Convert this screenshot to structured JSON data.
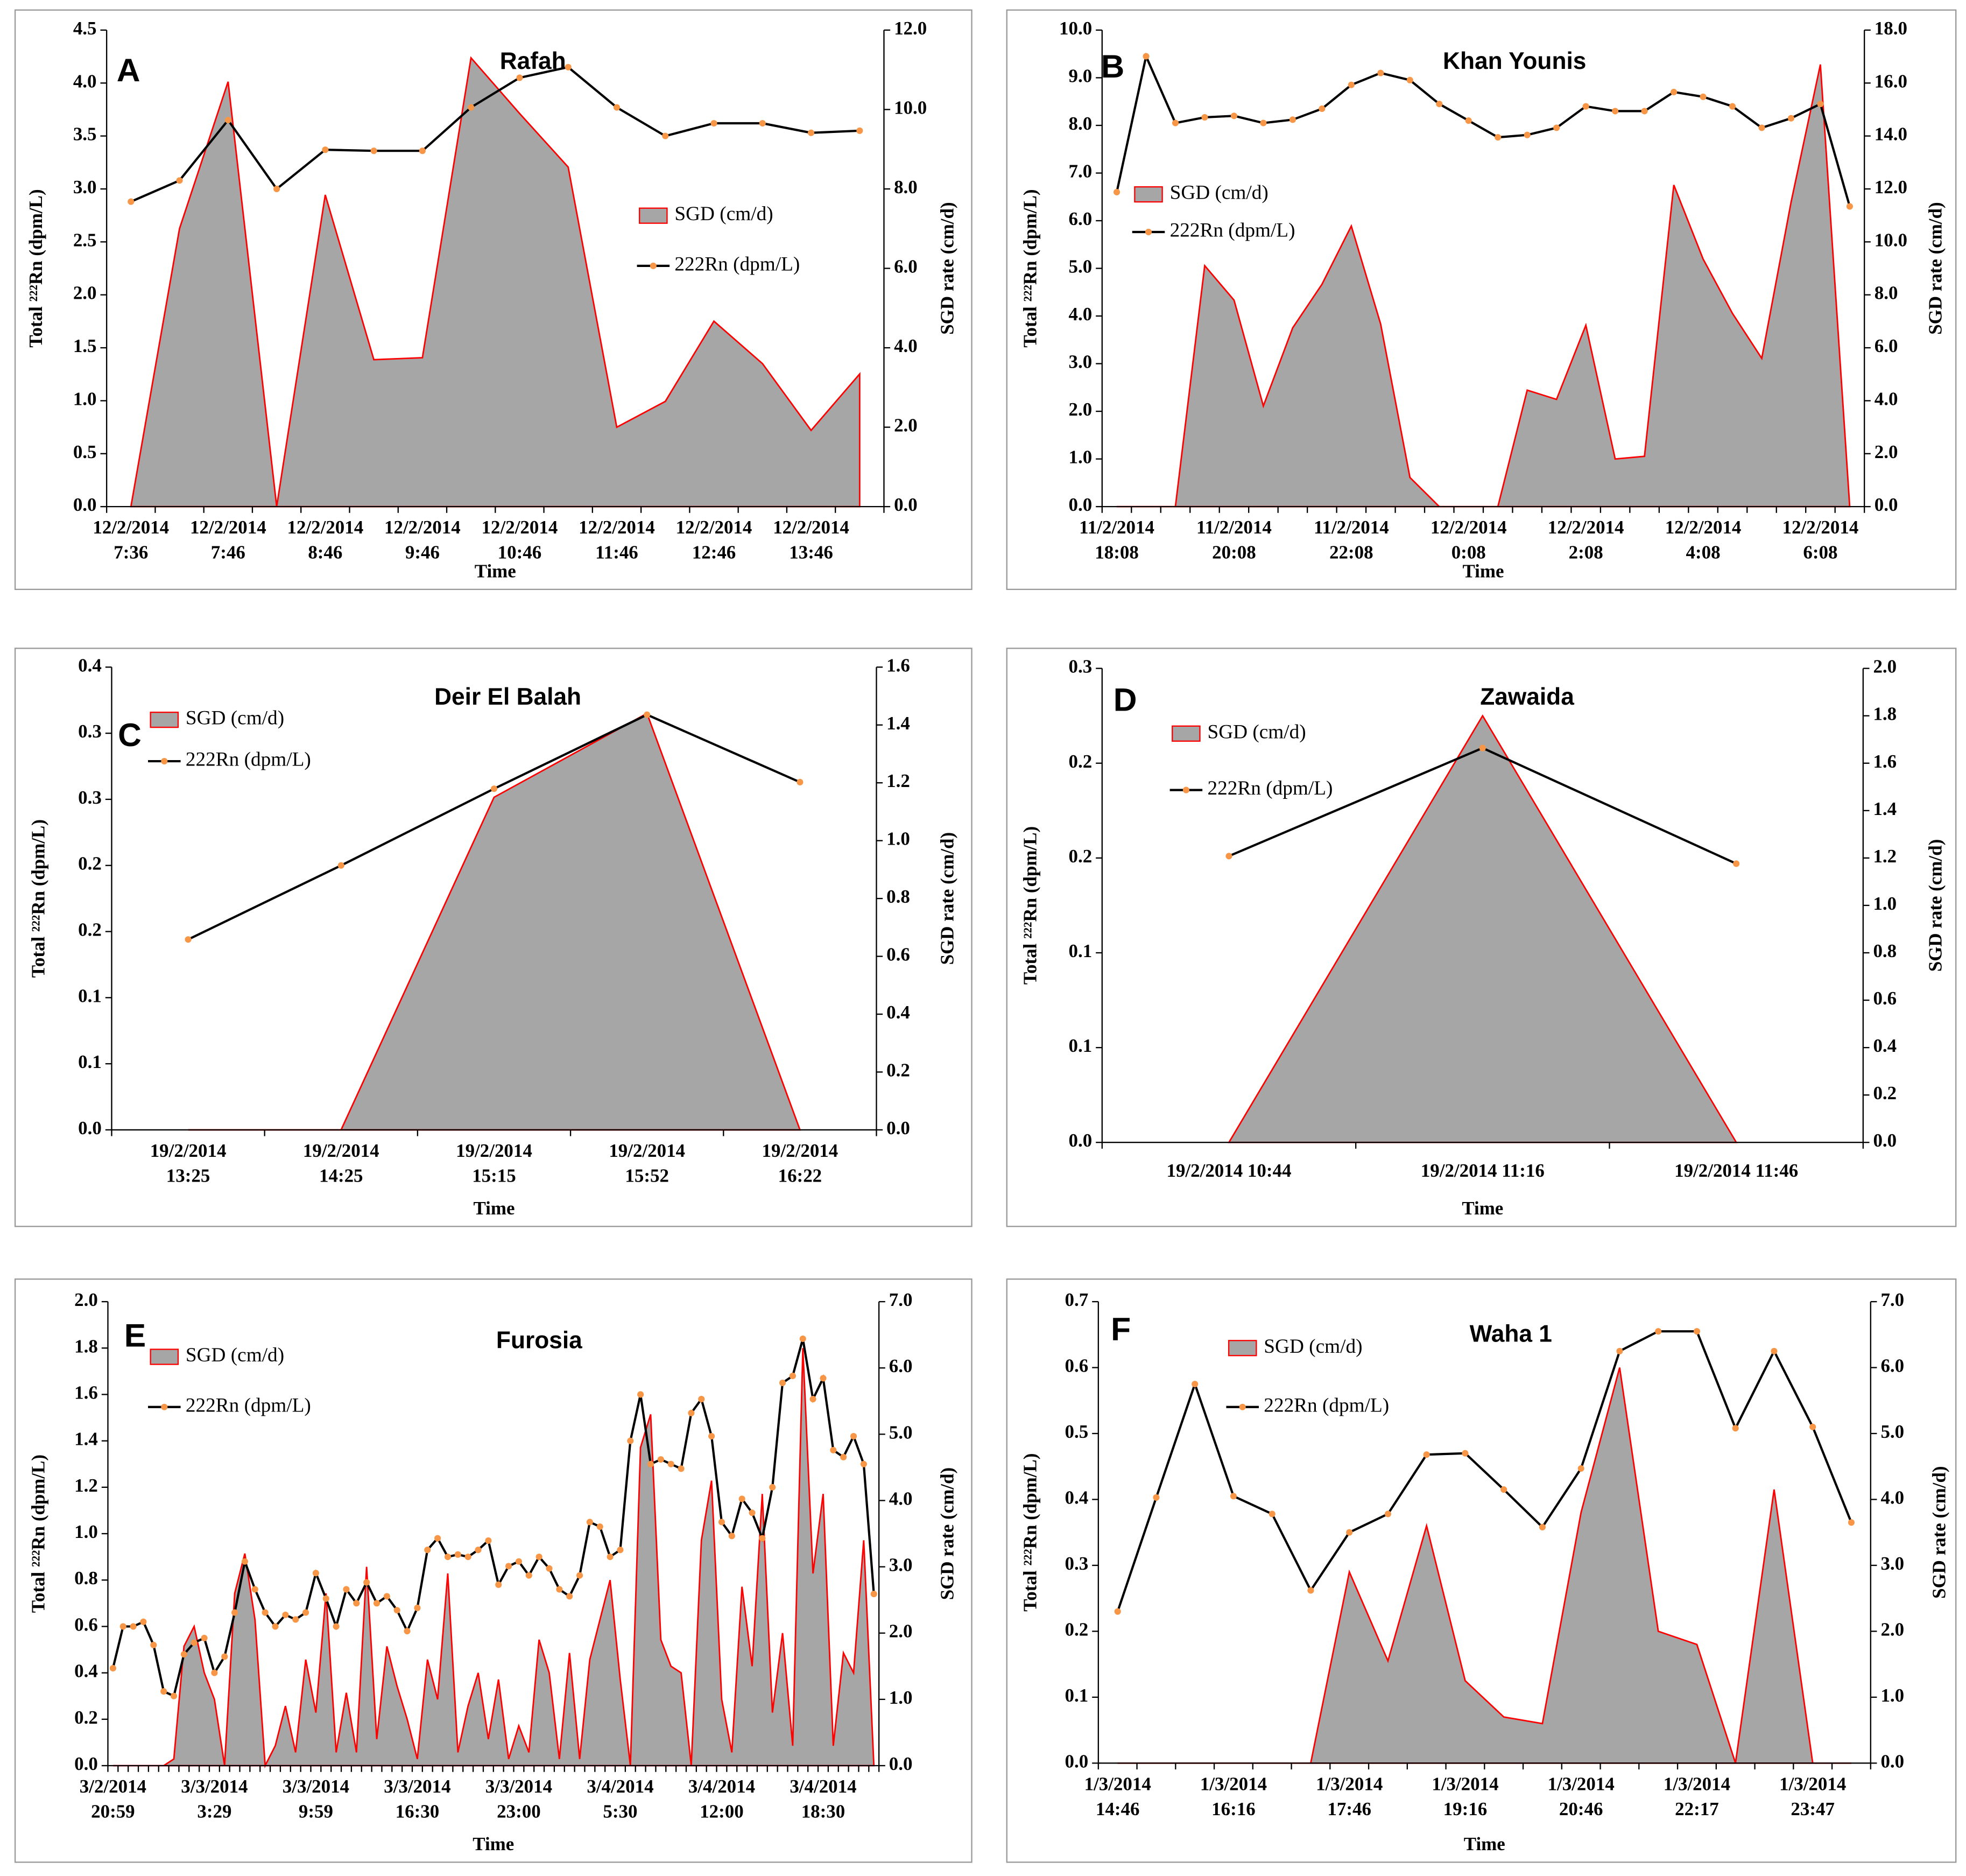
{
  "chart_data": [
    {
      "type": "combo",
      "letter": "A",
      "title": "Rafah",
      "ylabel": "Total ²²²Rn (dpm/L)",
      "y2label": "SGD rate (cm/d)",
      "xlabel": "Time",
      "categories": [
        "12/2/2014 7:36",
        null,
        "12/2/2014 7:46",
        null,
        "12/2/2014 8:46",
        null,
        "12/2/2014 9:46",
        null,
        "12/2/2014 10:46",
        null,
        "12/2/2014 11:46",
        null,
        "12/2/2014 12:46",
        null,
        "12/2/2014 13:46",
        null
      ],
      "series": [
        {
          "name": "SGD (cm/d)",
          "color": "#a6a6a6",
          "edge_color": "#ff0000",
          "axis": "y2",
          "values": [
            0,
            7.0,
            10.7,
            0,
            7.85,
            3.7,
            3.75,
            11.3,
            9.9,
            8.55,
            2.0,
            2.65,
            4.67,
            3.6,
            1.92,
            3.34
          ]
        },
        {
          "name": "222Rn (dpm/L)",
          "color": "#000000",
          "marker_color": "#f79646",
          "values": [
            2.88,
            3.08,
            3.65,
            3.0,
            3.37,
            3.36,
            3.36,
            3.77,
            4.05,
            4.15,
            3.77,
            3.5,
            3.62,
            3.62,
            3.53,
            3.55
          ]
        }
      ],
      "ylim": [
        0,
        4.5
      ],
      "yticks": [
        {
          "value": 0,
          "label": "0.0"
        },
        0.5,
        {
          "value": 1,
          "label": "1.0"
        },
        1.5,
        {
          "value": 2,
          "label": "2.0"
        },
        2.5,
        {
          "value": 3,
          "label": "3.0"
        },
        3.5,
        {
          "value": 4,
          "label": "4.0"
        },
        4.5
      ],
      "y2lim": [
        0,
        12
      ],
      "y2ticks": [
        {
          "value": 0,
          "label": "0.0"
        },
        {
          "value": 2,
          "label": "2.0"
        },
        {
          "value": 4,
          "label": "4.0"
        },
        {
          "value": 6,
          "label": "6.0"
        },
        {
          "value": 8,
          "label": "8.0"
        },
        {
          "value": 10,
          "label": "10.0"
        },
        {
          "value": 12,
          "label": "12.0"
        }
      ]
    },
    {
      "type": "combo",
      "letter": "B",
      "title": "Khan Younis",
      "ylabel": "Total ²²²Rn (dpm/L)",
      "y2label": "SGD rate (cm/d)",
      "xlabel": "Time",
      "categories": [
        "11/2/2014 18:08",
        null,
        null,
        null,
        "11/2/2014 20:08",
        null,
        null,
        null,
        "11/2/2014 22:08",
        null,
        null,
        null,
        "12/2/2014 0:08",
        null,
        null,
        null,
        "12/2/2014 2:08",
        null,
        null,
        null,
        "12/2/2014 4:08",
        null,
        null,
        null,
        "12/2/2014 6:08",
        null
      ],
      "series": [
        {
          "name": "SGD (cm/d)",
          "color": "#a6a6a6",
          "edge_color": "#ff0000",
          "axis": "y2",
          "values": [
            0,
            0,
            0,
            9.1,
            7.8,
            3.8,
            6.75,
            8.4,
            10.6,
            6.9,
            1.1,
            0,
            0,
            0,
            4.4,
            4.05,
            6.85,
            1.8,
            1.9,
            12.15,
            9.35,
            7.3,
            5.6,
            11.5,
            16.7,
            0
          ]
        },
        {
          "name": "222Rn (dpm/L)",
          "color": "#000000",
          "marker_color": "#f79646",
          "values": [
            6.6,
            9.45,
            8.05,
            8.17,
            8.2,
            8.05,
            8.12,
            8.35,
            8.85,
            9.1,
            8.95,
            8.45,
            8.1,
            7.75,
            7.8,
            7.95,
            8.4,
            8.3,
            8.3,
            8.7,
            8.6,
            8.4,
            7.95,
            8.15,
            8.45,
            6.3
          ]
        }
      ],
      "ylim": [
        0,
        10
      ],
      "yticks": [
        {
          "value": 0,
          "label": "0.0"
        },
        {
          "value": 1,
          "label": "1.0"
        },
        {
          "value": 2,
          "label": "2.0"
        },
        {
          "value": 3,
          "label": "3.0"
        },
        {
          "value": 4,
          "label": "4.0"
        },
        {
          "value": 5,
          "label": "5.0"
        },
        {
          "value": 6,
          "label": "6.0"
        },
        {
          "value": 7,
          "label": "7.0"
        },
        {
          "value": 8,
          "label": "8.0"
        },
        {
          "value": 9,
          "label": "9.0"
        },
        {
          "value": 10,
          "label": "10.0"
        }
      ],
      "y2lim": [
        0,
        18
      ],
      "y2ticks": [
        {
          "value": 0,
          "label": "0.0"
        },
        {
          "value": 2,
          "label": "2.0"
        },
        {
          "value": 4,
          "label": "4.0"
        },
        {
          "value": 6,
          "label": "6.0"
        },
        {
          "value": 8,
          "label": "8.0"
        },
        {
          "value": 10,
          "label": "10.0"
        },
        {
          "value": 12,
          "label": "12.0"
        },
        {
          "value": 14,
          "label": "14.0"
        },
        {
          "value": 16,
          "label": "16.0"
        },
        {
          "value": 18,
          "label": "18.0"
        }
      ]
    },
    {
      "type": "combo",
      "letter": "C",
      "title": "Deir El Balah",
      "ylabel": "Total ²²²Rn (dpm/L)",
      "y2label": "SGD rate (cm/d)",
      "xlabel": "Time",
      "categories": [
        "19/2/2014 13:25",
        "19/2/2014 14:25",
        "19/2/2014 15:15",
        "19/2/2014 15:52",
        "19/2/2014 16:22"
      ],
      "series": [
        {
          "name": "SGD (cm/d)",
          "color": "#a6a6a6",
          "edge_color": "#ff0000",
          "axis": "y2",
          "values": [
            0,
            0,
            1.15,
            1.44,
            0
          ]
        },
        {
          "name": "222Rn (dpm/L)",
          "color": "#000000",
          "marker_color": "#f79646",
          "values": [
            0.144,
            0.2,
            0.258,
            0.314,
            0.263
          ]
        }
      ],
      "ylim": [
        0,
        0.35
      ],
      "yticks": [
        {
          "value": 0,
          "label": "0.0"
        },
        {
          "value": 0.05,
          "label": "0.1"
        },
        0.1,
        {
          "value": 0.15,
          "label": "0.2"
        },
        0.2,
        {
          "value": 0.25,
          "label": "0.3"
        },
        0.3,
        {
          "value": 0.35,
          "label": "0.4"
        }
      ],
      "y2lim": [
        0,
        1.6
      ],
      "y2ticks": [
        {
          "value": 0,
          "label": "0.0"
        },
        0.2,
        0.4,
        0.6,
        0.8,
        {
          "value": 1,
          "label": "1.0"
        },
        1.2,
        1.4,
        1.6
      ]
    },
    {
      "type": "combo",
      "letter": "D",
      "title": "Zawaida",
      "ylabel": "Total ²²²Rn (dpm/L)",
      "y2label": "SGD rate (cm/d)",
      "xlabel": "Time",
      "categories": [
        "19/2/2014 10:44",
        "19/2/2014 11:16",
        "19/2/2014 11:46"
      ],
      "series": [
        {
          "name": "SGD (cm/d)",
          "color": "#a6a6a6",
          "edge_color": "#ff0000",
          "axis": "y2",
          "values": [
            0,
            1.8,
            0
          ]
        },
        {
          "name": "222Rn (dpm/L)",
          "color": "#000000",
          "marker_color": "#f79646",
          "values": [
            0.151,
            0.208,
            0.147
          ]
        }
      ],
      "ylim": [
        0,
        0.25
      ],
      "yticks": [
        {
          "value": 0,
          "label": "0.0"
        },
        {
          "value": 0.05,
          "label": "0.1"
        },
        0.1,
        {
          "value": 0.15,
          "label": "0.2"
        },
        0.2,
        {
          "value": 0.25,
          "label": "0.3"
        }
      ],
      "y2lim": [
        0,
        2
      ],
      "y2ticks": [
        {
          "value": 0,
          "label": "0.0"
        },
        0.2,
        0.4,
        0.6,
        0.8,
        {
          "value": 1,
          "label": "1.0"
        },
        1.2,
        1.4,
        1.6,
        1.8,
        {
          "value": 2,
          "label": "2.0"
        }
      ]
    },
    {
      "type": "combo",
      "letter": "E",
      "title": "Furosia",
      "ylabel": "Total ²²²Rn (dpm/L)",
      "y2label": "SGD rate (cm/d)",
      "xlabel": "Time",
      "categories": [
        "3/2/2014 20:59",
        null,
        null,
        null,
        null,
        null,
        null,
        null,
        null,
        null,
        "3/3/2014 3:29",
        null,
        null,
        null,
        null,
        null,
        null,
        null,
        null,
        null,
        "3/3/2014 9:59",
        null,
        null,
        null,
        null,
        null,
        null,
        null,
        null,
        null,
        "3/3/2014 16:30",
        null,
        null,
        null,
        null,
        null,
        null,
        null,
        null,
        null,
        "3/3/2014 23:00",
        null,
        null,
        null,
        null,
        null,
        null,
        null,
        null,
        null,
        "3/4/2014 5:30",
        null,
        null,
        null,
        null,
        null,
        null,
        null,
        null,
        null,
        "3/4/2014 12:00",
        null,
        null,
        null,
        null,
        null,
        null,
        null,
        null,
        null,
        "3/4/2014 18:30",
        null,
        null,
        null,
        null,
        null
      ],
      "series": [
        {
          "name": "SGD (cm/d)",
          "color": "#a6a6a6",
          "edge_color": "#ff0000",
          "axis": "y2",
          "values": [
            0,
            0,
            0,
            0,
            0,
            0,
            0.1,
            1.8,
            2.1,
            1.4,
            1.0,
            0,
            2.6,
            3.2,
            2.2,
            0,
            0.3,
            0.9,
            0.2,
            1.6,
            0.8,
            2.6,
            0.2,
            1.1,
            0.2,
            3.0,
            0.4,
            1.8,
            1.2,
            0.7,
            0.1,
            1.6,
            1.0,
            2.9,
            0.2,
            0.9,
            1.4,
            0.4,
            1.3,
            0.1,
            0.6,
            0.2,
            1.9,
            1.4,
            0.1,
            1.7,
            0.1,
            1.6,
            2.2,
            2.8,
            1.3,
            0,
            4.8,
            5.3,
            1.9,
            1.5,
            1.4,
            0,
            3.4,
            4.3,
            1.0,
            0.2,
            2.7,
            1.5,
            4.1,
            0.8,
            2.0,
            0.3,
            6.3,
            2.9,
            4.1,
            0.3,
            1.7,
            1.4,
            3.4,
            0
          ]
        },
        {
          "name": "222Rn (dpm/L)",
          "color": "#000000",
          "marker_color": "#f79646",
          "values": [
            0.42,
            0.6,
            0.6,
            0.62,
            0.52,
            0.32,
            0.3,
            0.48,
            0.53,
            0.55,
            0.4,
            0.47,
            0.66,
            0.88,
            0.76,
            0.66,
            0.6,
            0.65,
            0.63,
            0.66,
            0.83,
            0.72,
            0.6,
            0.76,
            0.7,
            0.79,
            0.7,
            0.73,
            0.67,
            0.58,
            0.68,
            0.93,
            0.98,
            0.9,
            0.91,
            0.9,
            0.93,
            0.97,
            0.78,
            0.86,
            0.88,
            0.82,
            0.9,
            0.85,
            0.76,
            0.73,
            0.82,
            1.05,
            1.03,
            0.9,
            0.93,
            1.4,
            1.6,
            1.3,
            1.32,
            1.3,
            1.28,
            1.52,
            1.58,
            1.42,
            1.05,
            0.99,
            1.15,
            1.09,
            0.98,
            1.2,
            1.65,
            1.68,
            1.84,
            1.58,
            1.67,
            1.36,
            1.33,
            1.42,
            1.3,
            0.74
          ]
        }
      ],
      "ylim": [
        0,
        2
      ],
      "yticks": [
        {
          "value": 0,
          "label": "0.0"
        },
        0.2,
        0.4,
        0.6,
        0.8,
        {
          "value": 1,
          "label": "1.0"
        },
        1.2,
        1.4,
        1.6,
        1.8,
        {
          "value": 2,
          "label": "2.0"
        }
      ],
      "y2lim": [
        0,
        7
      ],
      "y2ticks": [
        {
          "value": 0,
          "label": "0.0"
        },
        {
          "value": 1,
          "label": "1.0"
        },
        {
          "value": 2,
          "label": "2.0"
        },
        {
          "value": 3,
          "label": "3.0"
        },
        {
          "value": 4,
          "label": "4.0"
        },
        {
          "value": 5,
          "label": "5.0"
        },
        {
          "value": 6,
          "label": "6.0"
        },
        {
          "value": 7,
          "label": "7.0"
        }
      ]
    },
    {
      "type": "combo",
      "letter": "F",
      "title": "Waha 1",
      "ylabel": "Total ²²²Rn (dpm/L)",
      "y2label": "SGD rate (cm/d)",
      "xlabel": "Time",
      "categories": [
        "1/3/2014 14:46",
        null,
        null,
        "1/3/2014 16:16",
        null,
        null,
        "1/3/2014 17:46",
        null,
        null,
        "1/3/2014 19:16",
        null,
        null,
        "1/3/2014 20:46",
        null,
        null,
        "1/3/2014 22:17",
        null,
        null,
        "1/3/2014 23:47",
        null
      ],
      "series": [
        {
          "name": "SGD (cm/d)",
          "color": "#a6a6a6",
          "edge_color": "#ff0000",
          "axis": "y2",
          "values": [
            0,
            0,
            0,
            0,
            0,
            0,
            2.9,
            1.55,
            3.6,
            1.25,
            0.7,
            0.6,
            3.8,
            6.0,
            2.0,
            1.8,
            0,
            4.15,
            0,
            0
          ]
        },
        {
          "name": "222Rn (dpm/L)",
          "color": "#000000",
          "marker_color": "#f79646",
          "values": [
            0.23,
            0.403,
            0.575,
            0.405,
            0.378,
            0.262,
            0.35,
            0.378,
            0.468,
            0.47,
            0.415,
            0.358,
            0.447,
            0.625,
            0.655,
            0.655,
            0.508,
            0.625,
            0.51,
            0.365
          ]
        }
      ],
      "ylim": [
        0,
        0.7
      ],
      "yticks": [
        {
          "value": 0,
          "label": "0.0"
        },
        0.1,
        0.2,
        0.3,
        0.4,
        0.5,
        0.6,
        0.7
      ],
      "y2lim": [
        0,
        7
      ],
      "y2ticks": [
        {
          "value": 0,
          "label": "0.0"
        },
        {
          "value": 1,
          "label": "1.0"
        },
        {
          "value": 2,
          "label": "2.0"
        },
        {
          "value": 3,
          "label": "3.0"
        },
        {
          "value": 4,
          "label": "4.0"
        },
        {
          "value": 5,
          "label": "5.0"
        },
        {
          "value": 6,
          "label": "6.0"
        },
        {
          "value": 7,
          "label": "7.0"
        }
      ]
    }
  ]
}
